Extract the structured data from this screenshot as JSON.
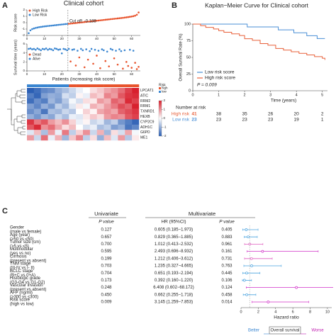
{
  "panels": [
    "A",
    "B",
    "C"
  ],
  "chart_data": [
    {
      "type": "scatter",
      "title": "Clinical cohort",
      "ylabel": "Risk score",
      "annotation": "Cut off: -0.188",
      "xlim": [
        0,
        65
      ],
      "xticks": [
        0,
        10,
        20,
        30,
        40,
        50,
        60
      ],
      "ylim": [
        -2,
        2
      ],
      "yticks": [
        -2,
        -1,
        0,
        1,
        2
      ],
      "series": [
        {
          "name": "High Risk",
          "color": "#e8542d",
          "x": [
            24,
            25,
            26,
            27,
            28,
            29,
            30,
            31,
            32,
            33,
            34,
            35,
            36,
            37,
            38,
            39,
            40,
            41,
            42,
            43,
            44,
            45,
            46,
            47,
            48,
            49,
            50,
            51,
            52,
            53,
            54,
            55,
            56,
            57,
            58,
            59,
            60,
            61,
            62,
            63,
            64
          ],
          "values": [
            -0.17,
            -0.14,
            -0.11,
            -0.08,
            -0.05,
            -0.02,
            0.01,
            0.04,
            0.07,
            0.1,
            0.13,
            0.16,
            0.19,
            0.22,
            0.25,
            0.28,
            0.31,
            0.34,
            0.37,
            0.4,
            0.43,
            0.46,
            0.49,
            0.52,
            0.55,
            0.58,
            0.61,
            0.64,
            0.67,
            0.7,
            0.73,
            0.76,
            0.8,
            0.84,
            0.88,
            0.92,
            0.97,
            1.02,
            1.1,
            1.25,
            1.6
          ]
        },
        {
          "name": "Low Risk",
          "color": "#3a86d1",
          "x": [
            1,
            2,
            3,
            4,
            5,
            6,
            7,
            8,
            9,
            10,
            11,
            12,
            13,
            14,
            15,
            16,
            17,
            18,
            19,
            20,
            21,
            22,
            23
          ],
          "values": [
            -1.65,
            -1.2,
            -1.0,
            -0.9,
            -0.82,
            -0.76,
            -0.7,
            -0.66,
            -0.62,
            -0.58,
            -0.55,
            -0.52,
            -0.49,
            -0.46,
            -0.43,
            -0.4,
            -0.37,
            -0.34,
            -0.31,
            -0.28,
            -0.25,
            -0.22,
            -0.2
          ]
        }
      ]
    },
    {
      "type": "scatter",
      "xlabel": "Patients (increasing risk score)",
      "ylabel": "Survival time (years)",
      "xlim": [
        0,
        65
      ],
      "xticks": [
        0,
        10,
        20,
        30,
        40,
        50,
        60
      ],
      "ylim": [
        0,
        6
      ],
      "yticks": [
        0,
        2,
        4,
        6
      ],
      "series": [
        {
          "name": "Dead",
          "color": "#e8542d",
          "x": [
            25,
            28,
            30,
            33,
            35,
            38,
            40,
            42,
            45,
            47,
            50,
            52,
            55,
            57,
            58,
            60,
            62,
            63,
            64
          ],
          "values": [
            2.1,
            1.2,
            3.0,
            0.8,
            2.5,
            1.6,
            3.4,
            0.6,
            2.2,
            1.0,
            2.8,
            1.4,
            0.5,
            2.0,
            1.1,
            0.7,
            1.8,
            0.4,
            0.9
          ]
        },
        {
          "name": "Alive",
          "color": "#3a86d1",
          "x": [
            1,
            2,
            3,
            4,
            5,
            6,
            7,
            8,
            9,
            10,
            11,
            12,
            13,
            14,
            15,
            16,
            17,
            18,
            19,
            20,
            21,
            22,
            23,
            24,
            26,
            27,
            29,
            31,
            32,
            34,
            36,
            37,
            39,
            41,
            43,
            44,
            46,
            48,
            49,
            51,
            53,
            54,
            56,
            59,
            61
          ],
          "values": [
            4.9,
            5.0,
            4.8,
            4.9,
            4.7,
            5.0,
            4.8,
            4.6,
            4.9,
            4.8,
            5.0,
            4.7,
            4.9,
            4.8,
            4.6,
            5.0,
            4.9,
            4.7,
            4.8,
            3.9,
            4.9,
            4.8,
            4.6,
            4.9,
            4.7,
            4.8,
            4.5,
            4.9,
            4.6,
            4.8,
            4.4,
            4.9,
            4.7,
            4.5,
            4.8,
            4.6,
            4.3,
            4.9,
            4.7,
            4.5,
            4.8,
            4.4,
            4.6,
            4.7,
            4.5
          ]
        }
      ]
    },
    {
      "type": "heatmap",
      "rows": [
        "LPCAT1",
        "ATIC",
        "RRM2",
        "RRM1",
        "TXNRD1",
        "HEXB",
        "CYP2C9",
        "ADH1C",
        "G6PD",
        "ME1"
      ],
      "values": [
        [
          -2,
          -1.8,
          -1.5,
          -1.4,
          -1,
          -0.8,
          -0.5,
          -0.2,
          0,
          0.3,
          0.5,
          0.8,
          1,
          1.3,
          1.7,
          2
        ],
        [
          -1.6,
          -1.9,
          -1.2,
          -1.0,
          -1.1,
          -0.4,
          -0.6,
          0.1,
          -0.2,
          0.6,
          0.4,
          1.1,
          0.9,
          1.5,
          1.8,
          1.9
        ],
        [
          -1.8,
          -1.4,
          -1.6,
          -0.9,
          -1.2,
          -0.7,
          -0.1,
          -0.4,
          0.3,
          0.2,
          0.9,
          0.7,
          1.4,
          1.2,
          1.9,
          1.7
        ],
        [
          -1.2,
          -1.5,
          -1.0,
          -1.3,
          -0.6,
          -0.9,
          -0.3,
          0.2,
          -0.1,
          0.7,
          0.5,
          0.9,
          1.2,
          1.6,
          1.4,
          2
        ],
        [
          -1.4,
          -1.1,
          -1.7,
          -0.8,
          -0.9,
          -0.5,
          -0.7,
          0.0,
          0.4,
          0.1,
          0.8,
          1.0,
          0.8,
          1.4,
          1.6,
          1.8
        ],
        [
          -1.0,
          -1.3,
          -0.9,
          -1.1,
          -0.5,
          -0.8,
          -0.2,
          -0.3,
          0.2,
          0.5,
          0.3,
          0.9,
          1.1,
          1.0,
          1.5,
          1.7
        ],
        [
          1.8,
          1.2,
          1.5,
          0.9,
          0.6,
          1.0,
          0.4,
          -0.2,
          0.1,
          -0.5,
          -0.3,
          -0.9,
          -0.6,
          -1.3,
          -1.6,
          -1.9
        ],
        [
          1.5,
          1.9,
          1.0,
          1.3,
          0.8,
          0.3,
          0.6,
          0.0,
          -0.4,
          -0.2,
          -0.8,
          -0.6,
          -1.2,
          -1.0,
          -1.7,
          -1.5
        ],
        [
          -0.3,
          0.6,
          -0.8,
          0.9,
          -0.2,
          1.2,
          -0.6,
          0.4,
          1.0,
          -0.5,
          0.7,
          -0.9,
          0.3,
          -0.4,
          0.8,
          -0.1
        ],
        [
          0.9,
          -0.5,
          1.3,
          -0.2,
          0.7,
          -0.9,
          0.5,
          1.1,
          -0.6,
          0.3,
          -1.0,
          0.6,
          -0.3,
          0.9,
          -0.7,
          0.2
        ]
      ],
      "column_risk": [
        "low",
        "low",
        "low",
        "low",
        "low",
        "low",
        "high",
        "high",
        "high",
        "high",
        "high",
        "high",
        "high",
        "high",
        "high",
        "high"
      ],
      "risk_legend": {
        "title": "Risk",
        "labels": [
          "high",
          "low"
        ],
        "colors": [
          "#e8542d",
          "#3a86d1"
        ]
      },
      "clim": [
        -2,
        2
      ],
      "cticks": [
        2,
        1,
        0,
        -1,
        -2
      ],
      "colors": [
        "#2b5fb4",
        "#ffffff",
        "#d8202e"
      ]
    },
    {
      "type": "line",
      "title": "Kaplan−Meier Curve for Clinical cohort",
      "xlabel": "Time (years)",
      "ylabel": "Overall Survival Rate (%)",
      "xlim": [
        0,
        5.2
      ],
      "xticks": [
        0,
        1,
        2,
        3,
        4,
        5
      ],
      "ylim": [
        0,
        100
      ],
      "yticks": [
        0,
        25,
        50,
        75,
        100
      ],
      "legend": "lower left",
      "annotation": "P = 0.009",
      "series": [
        {
          "name": "Low risk score",
          "color": "#4a8fd6",
          "x": [
            0,
            1.2,
            2.1,
            2.6,
            3.3,
            3.9,
            4.4,
            4.8,
            5.1
          ],
          "values": [
            100,
            100,
            95.7,
            95.7,
            91.3,
            87,
            82.6,
            78.3,
            78.3
          ]
        },
        {
          "name": "High risk score",
          "color": "#e8603a",
          "x": [
            0,
            0.3,
            0.5,
            0.8,
            1,
            1.2,
            1.5,
            1.8,
            2,
            2.3,
            2.6,
            2.9,
            3.2,
            3.5,
            3.8,
            4.1,
            4.4,
            4.7,
            5,
            5.1
          ],
          "values": [
            100,
            97.6,
            95.1,
            92.7,
            90.2,
            87.8,
            85.4,
            82.9,
            78,
            75.6,
            70.7,
            68.3,
            63.4,
            61,
            58.5,
            56.1,
            53.7,
            51.2,
            48.8,
            46.3
          ]
        }
      ],
      "risk_table": {
        "title": "Number at risk",
        "rows": [
          {
            "name": "High risk",
            "color": "#e8603a",
            "values": [
              41,
              38,
              35,
              26,
              20,
              2
            ]
          },
          {
            "name": "Low risk",
            "color": "#4a8fd6",
            "values": [
              23,
              23,
              23,
              23,
              19,
              1
            ]
          }
        ]
      }
    },
    {
      "type": "forest",
      "headers": [
        "Univariate",
        "Multivariate"
      ],
      "columns": [
        "P value",
        "HR (95%CI)",
        "P value"
      ],
      "xlabel": "Hazard ratio",
      "xlim": [
        0,
        10.5
      ],
      "xticks": [
        0,
        2,
        4,
        6,
        8,
        10
      ],
      "reference": 1,
      "footer": [
        "Better",
        "Overall survival",
        "Worse"
      ],
      "footer_colors": [
        "#3a86d1",
        "#333333",
        "#c020b0"
      ],
      "rows": [
        {
          "label": [
            "Gender",
            "(male vs female)"
          ],
          "uni_p": "0.127",
          "hr": 0.605,
          "lo": 0.185,
          "hi": 1.973,
          "hr_label": "0.605 (0.185−1.973)",
          "multi_p": "0.405",
          "color": "#4aa3df"
        },
        {
          "label": [
            "Age (year)",
            "(>50 vs ≤50)"
          ],
          "uni_p": "0.657",
          "hr": 0.829,
          "lo": 0.365,
          "hi": 1.885,
          "hr_label": "0.829 (0.365−1.885)",
          "multi_p": "0.883",
          "color": "#4aa3df"
        },
        {
          "label": [
            "Tumor size (cm)",
            "(>5 vs ≤5)"
          ],
          "uni_p": "0.700",
          "hr": 1.012,
          "lo": 0.413,
          "hi": 2.532,
          "hr_label": "1.012 (0.413−2.532)",
          "multi_p": "0.961",
          "color": "#e05fc0"
        },
        {
          "label": [
            "Multinodular",
            "(yes vs no)"
          ],
          "uni_p": "0.595",
          "hr": 2.493,
          "lo": 0.696,
          "hi": 8.932,
          "hr_label": "2.493 (0.696−8.932)",
          "multi_p": "0.161",
          "color": "#d030c8"
        },
        {
          "label": [
            "Cirrhosis",
            "(present vs absent)"
          ],
          "uni_p": "0.199",
          "hr": 1.212,
          "lo": 0.406,
          "hi": 3.612,
          "hr_label": "1.212 (0.406−3.612)",
          "multi_p": "0.731",
          "color": "#e05fc0"
        },
        {
          "label": [
            "TNM stage",
            "(III-IV vs I- II)"
          ],
          "uni_p": "0.703",
          "hr": 1.235,
          "lo": 0.327,
          "hi": 4.665,
          "hr_label": "1.235 (0.327−4.665)",
          "multi_p": "0.763",
          "color": "#4aa3df"
        },
        {
          "label": [
            "BCLC stage",
            "(B+C vs 0+A)"
          ],
          "uni_p": "0.704",
          "hr": 0.651,
          "lo": 0.193,
          "hi": 2.194,
          "hr_label": "0.651 (0.193−2.194)",
          "multi_p": "0.445",
          "color": "#4aa3df"
        },
        {
          "label": [
            "Histologic grade",
            "(G3-G4 vs G1-G2)"
          ],
          "uni_p": "0.173",
          "hr": 0.392,
          "lo": 0.16,
          "hi": 1.22,
          "hr_label": "0.392 (0.160−1.220)",
          "multi_p": "0.106",
          "color": "#4aa3df"
        },
        {
          "label": [
            "Vascular invasion",
            "(present vs absent)"
          ],
          "uni_p": "0.248",
          "hr": 6.408,
          "lo": 0.602,
          "hi": 68.172,
          "hr_label": "6.408 (0.602−68.172)",
          "multi_p": "0.124",
          "color": "#d030c8"
        },
        {
          "label": [
            "AFP (ng/ml)",
            "(>300 vs ≤300)"
          ],
          "uni_p": "0.450",
          "hr": 0.662,
          "lo": 0.255,
          "hi": 1.718,
          "hr_label": "0.662 (0.255−1.718)",
          "multi_p": "0.458",
          "color": "#4aa3df"
        },
        {
          "label": [
            "Risk score",
            "(high vs low)"
          ],
          "uni_p": "0.009",
          "hr": 3.145,
          "lo": 1.259,
          "hi": 7.853,
          "hr_label": "3.145 (1.259−7.853)",
          "multi_p": "0.014",
          "color": "#d030c8"
        }
      ]
    }
  ]
}
